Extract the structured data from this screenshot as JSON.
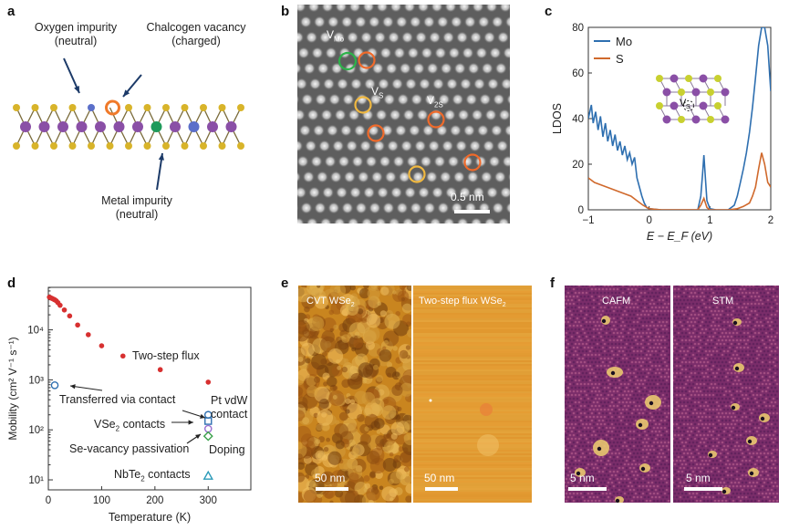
{
  "panels": {
    "a": {
      "label": "a",
      "oxygen": {
        "line1": "Oxygen impurity",
        "line2": "(neutral)"
      },
      "chalcogen": {
        "line1": "Chalcogen vacancy",
        "line2": "(charged)"
      },
      "metal": {
        "line1": "Metal impurity",
        "line2": "(neutral)"
      },
      "colors": {
        "metal_atom": "#8a4fa6",
        "chalcogen_atom": "#d8b42a",
        "oxygen_atom": "#5b6fc9",
        "metal_impurity": "#1f9a5a",
        "vacancy_ring": "#f07a2a",
        "arrow": "#1c3a68"
      }
    },
    "b": {
      "label": "b",
      "v_mo": {
        "main": "V",
        "sub": "Mo"
      },
      "v_s": {
        "main": "V",
        "sub": "S"
      },
      "v_2s": {
        "main": "V",
        "sub": "2S"
      },
      "scale": "0.5 nm",
      "colors": {
        "mo_circle": "#2db34a",
        "s_circle": "#f0b840",
        "s2_circle": "#f06a2a"
      }
    },
    "c": {
      "label": "c",
      "legend": [
        {
          "name": "Mo",
          "color": "#2e6fb0"
        },
        {
          "name": "S",
          "color": "#d0692c"
        }
      ],
      "inset_label": {
        "main": "V",
        "sub": "S"
      }
    },
    "d": {
      "label": "d",
      "annotations": {
        "two_step": "Two-step flux",
        "transferred": "Transferred via contact",
        "pt_line1": "Pt vdW",
        "pt_line2": "contact",
        "vse2": {
          "main": "VSe",
          "sub": "2",
          "rest": " contacts"
        },
        "se_vacancy": "Se-vacancy passivation",
        "doping": "Doping",
        "nbte2": {
          "main": "NbTe",
          "sub": "2",
          "rest": " contacts"
        }
      }
    },
    "e": {
      "label": "e",
      "left_title": {
        "main": "CVT WSe",
        "sub": "2"
      },
      "right_title": {
        "main": "Two-step flux WSe",
        "sub": "2"
      },
      "left_scale": "50 nm",
      "right_scale": "50 nm"
    },
    "f": {
      "label": "f",
      "left_title": "CAFM",
      "right_title": "STM",
      "left_scale": "5 nm",
      "right_scale": "5 nm"
    }
  },
  "chart_data": [
    {
      "type": "line",
      "panel": "c",
      "title": "",
      "xlabel": "E − E_F (eV)",
      "ylabel": "LDOS",
      "xlim": [
        -1,
        2
      ],
      "ylim": [
        0,
        80
      ],
      "xticks": [
        "−1",
        "0",
        "1",
        "2"
      ],
      "yticks": [
        "0",
        "20",
        "40",
        "60",
        "80"
      ],
      "series": [
        {
          "name": "Mo",
          "color": "#2e6fb0",
          "x": [
            -1.0,
            -0.95,
            -0.92,
            -0.88,
            -0.84,
            -0.8,
            -0.76,
            -0.72,
            -0.68,
            -0.64,
            -0.6,
            -0.56,
            -0.52,
            -0.48,
            -0.44,
            -0.4,
            -0.36,
            -0.32,
            -0.28,
            -0.24,
            -0.2,
            -0.16,
            -0.12,
            -0.08,
            -0.04,
            0.0,
            0.2,
            0.4,
            0.6,
            0.8,
            0.85,
            0.88,
            0.9,
            0.92,
            0.95,
            1.0,
            1.1,
            1.3,
            1.4,
            1.45,
            1.5,
            1.55,
            1.6,
            1.65,
            1.7,
            1.75,
            1.8,
            1.85,
            1.9,
            1.95,
            2.0
          ],
          "y": [
            40,
            46,
            38,
            43,
            35,
            41,
            32,
            38,
            30,
            35,
            28,
            33,
            26,
            30,
            24,
            28,
            22,
            25,
            20,
            23,
            14,
            10,
            6,
            3,
            1,
            0.5,
            0,
            0,
            0,
            0,
            6,
            16,
            24,
            16,
            4,
            0.5,
            0,
            0,
            2,
            6,
            12,
            18,
            25,
            34,
            45,
            58,
            72,
            80,
            80,
            72,
            52
          ]
        },
        {
          "name": "S",
          "color": "#d0692c",
          "x": [
            -1.0,
            -0.9,
            -0.8,
            -0.7,
            -0.6,
            -0.5,
            -0.4,
            -0.3,
            -0.2,
            -0.1,
            0.0,
            0.2,
            0.4,
            0.6,
            0.8,
            0.85,
            0.9,
            0.95,
            1.0,
            1.3,
            1.45,
            1.55,
            1.65,
            1.7,
            1.75,
            1.8,
            1.85,
            1.9,
            1.95,
            2.0
          ],
          "y": [
            14,
            12,
            11,
            10,
            9,
            8,
            7,
            6,
            4,
            2,
            0.5,
            0,
            0,
            0,
            0,
            2,
            5,
            1,
            0,
            0,
            0.5,
            1.5,
            3,
            6,
            10,
            18,
            25,
            20,
            12,
            10
          ]
        }
      ]
    },
    {
      "type": "scatter",
      "panel": "d",
      "title": "",
      "xlabel": "Temperature (K)",
      "ylabel": "Mobility (cm² V⁻¹ s⁻¹)",
      "xlim": [
        0,
        380
      ],
      "ylim_log10": [
        0.8,
        4.85
      ],
      "xticks": [
        "0",
        "100",
        "200",
        "300"
      ],
      "yticks": [
        "10¹",
        "10²",
        "10³",
        "10⁴"
      ],
      "series": [
        {
          "name": "Two-step flux",
          "color": "#d73030",
          "marker": "filled-circle",
          "x": [
            2,
            4,
            6,
            8,
            10,
            12,
            15,
            18,
            22,
            30,
            40,
            55,
            75,
            100,
            140,
            210,
            300
          ],
          "y": [
            45000,
            44000,
            43000,
            42000,
            41000,
            40000,
            38000,
            35000,
            31000,
            25000,
            19000,
            12500,
            8000,
            4800,
            3000,
            1600,
            900
          ]
        },
        {
          "name": "Transferred via contact",
          "color": "#2e6fb0",
          "marker": "open-circle",
          "x": [
            12
          ],
          "y": [
            780
          ]
        },
        {
          "name": "Pt vdW contact",
          "color": "#2e6fb0",
          "marker": "open-circle",
          "x": [
            300
          ],
          "y": [
            200
          ]
        },
        {
          "name": "VSe2 contacts",
          "color": "#2e6fb0",
          "marker": "open-square",
          "x": [
            300
          ],
          "y": [
            150
          ]
        },
        {
          "name": "VSe2 contacts (2)",
          "color": "#9a6fd0",
          "marker": "open-circle",
          "x": [
            300
          ],
          "y": [
            105
          ]
        },
        {
          "name": "Se-vacancy passivation / Doping",
          "color": "#3aa04a",
          "marker": "open-diamond",
          "x": [
            300
          ],
          "y": [
            75
          ]
        },
        {
          "name": "NbTe2 contacts",
          "color": "#2a9ab8",
          "marker": "open-triangle",
          "x": [
            300
          ],
          "y": [
            12
          ]
        }
      ]
    }
  ]
}
